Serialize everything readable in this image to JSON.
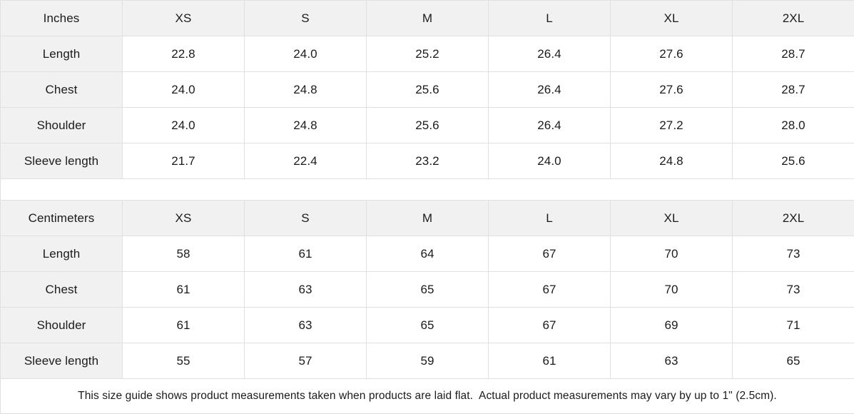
{
  "colors": {
    "header_bg": "#f1f1f1",
    "border": "#e0e0e0",
    "text": "#1b1b1b",
    "background": "#ffffff"
  },
  "size_guide": {
    "inches": {
      "unit_label": "Inches",
      "sizes": [
        "XS",
        "S",
        "M",
        "L",
        "XL",
        "2XL"
      ],
      "rows": [
        {
          "label": "Length",
          "values": [
            "22.8",
            "24.0",
            "25.2",
            "26.4",
            "27.6",
            "28.7"
          ]
        },
        {
          "label": "Chest",
          "values": [
            "24.0",
            "24.8",
            "25.6",
            "26.4",
            "27.6",
            "28.7"
          ]
        },
        {
          "label": "Shoulder",
          "values": [
            "24.0",
            "24.8",
            "25.6",
            "26.4",
            "27.2",
            "28.0"
          ]
        },
        {
          "label": "Sleeve length",
          "values": [
            "21.7",
            "22.4",
            "23.2",
            "24.0",
            "24.8",
            "25.6"
          ]
        }
      ]
    },
    "centimeters": {
      "unit_label": "Centimeters",
      "sizes": [
        "XS",
        "S",
        "M",
        "L",
        "XL",
        "2XL"
      ],
      "rows": [
        {
          "label": "Length",
          "values": [
            "58",
            "61",
            "64",
            "67",
            "70",
            "73"
          ]
        },
        {
          "label": "Chest",
          "values": [
            "61",
            "63",
            "65",
            "67",
            "70",
            "73"
          ]
        },
        {
          "label": "Shoulder",
          "values": [
            "61",
            "63",
            "65",
            "67",
            "69",
            "71"
          ]
        },
        {
          "label": "Sleeve length",
          "values": [
            "55",
            "57",
            "59",
            "61",
            "63",
            "65"
          ]
        }
      ]
    },
    "footnote": "This size guide shows product measurements taken when products are laid flat.  Actual product measurements may vary by up to 1\" (2.5cm)."
  }
}
